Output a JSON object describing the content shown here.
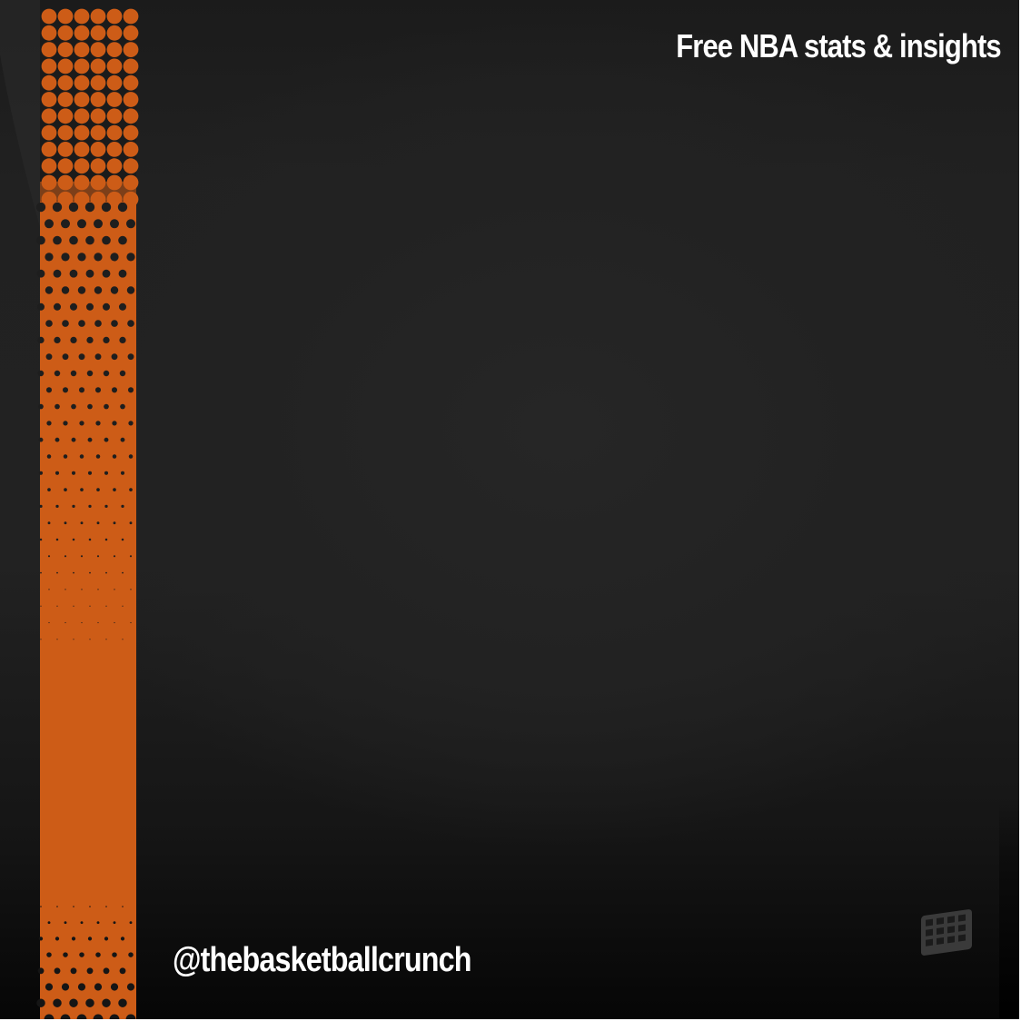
{
  "header": {
    "tagline": "Free NBA stats & insights"
  },
  "footer": {
    "handle": "@thebasketballcrunch"
  },
  "colors": {
    "background": "#222222",
    "accent_stripe": "#cd5c17",
    "text": "#ffffff",
    "logo_icon": "#3a3a3a"
  },
  "icons": {
    "brand_logo": "court-grid-icon"
  }
}
